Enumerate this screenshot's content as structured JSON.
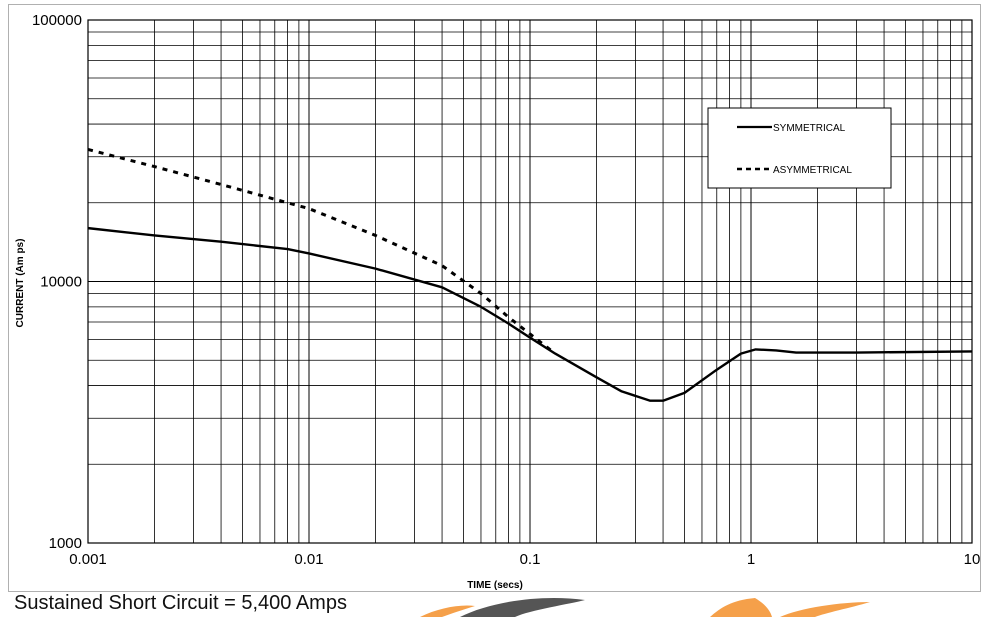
{
  "footer": {
    "note": "Sustained Short Circuit = 5,400 Amps"
  },
  "colors": {
    "grid": "#000000",
    "line": "#000000",
    "logo_orange": "#f5a04a",
    "logo_gray": "#555555"
  },
  "chart_data": {
    "type": "line",
    "title": "",
    "xlabel": "TIME (secs)",
    "ylabel": "CURRENT (Am ps)",
    "x_scale": "log",
    "y_scale": "log",
    "xlim": [
      0.001,
      10
    ],
    "ylim": [
      1000,
      100000
    ],
    "x_ticks": [
      "0.001",
      "0.01",
      "0.1",
      "1",
      "10"
    ],
    "y_ticks": [
      "1000",
      "10000",
      "100000"
    ],
    "grid": true,
    "legend_position": "top-right",
    "series": [
      {
        "name": "SYMMETRICAL",
        "style": "solid",
        "points": [
          [
            0.001,
            16000
          ],
          [
            0.002,
            15000
          ],
          [
            0.004,
            14200
          ],
          [
            0.008,
            13300
          ],
          [
            0.01,
            12800
          ],
          [
            0.02,
            11200
          ],
          [
            0.04,
            9500
          ],
          [
            0.06,
            8000
          ],
          [
            0.08,
            6900
          ],
          [
            0.1,
            6100
          ],
          [
            0.13,
            5300
          ],
          [
            0.2,
            4300
          ],
          [
            0.26,
            3800
          ],
          [
            0.35,
            3500
          ],
          [
            0.4,
            3500
          ],
          [
            0.5,
            3750
          ],
          [
            0.7,
            4600
          ],
          [
            0.9,
            5300
          ],
          [
            1.05,
            5500
          ],
          [
            1.3,
            5450
          ],
          [
            1.6,
            5350
          ],
          [
            3,
            5350
          ],
          [
            10,
            5400
          ]
        ]
      },
      {
        "name": "ASYMMETRICAL",
        "style": "dashed",
        "points": [
          [
            0.001,
            32000
          ],
          [
            0.002,
            27500
          ],
          [
            0.004,
            23500
          ],
          [
            0.008,
            20000
          ],
          [
            0.01,
            19000
          ],
          [
            0.02,
            15000
          ],
          [
            0.04,
            11500
          ],
          [
            0.06,
            9000
          ],
          [
            0.08,
            7300
          ],
          [
            0.1,
            6300
          ],
          [
            0.13,
            5300
          ]
        ]
      }
    ]
  }
}
